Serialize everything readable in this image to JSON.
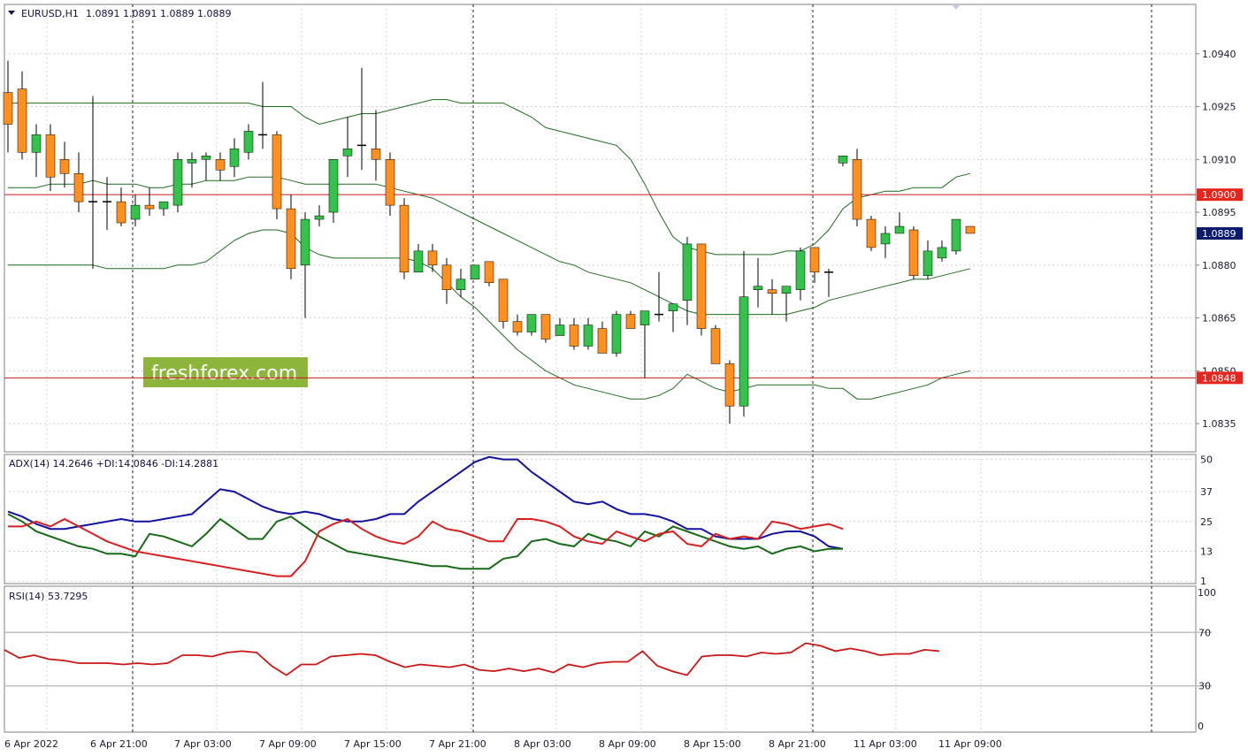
{
  "symbol_header": {
    "title": "EURUSD,H1",
    "ohlc": "1.0891 1.0891 1.0889 1.0889"
  },
  "watermark": "freshforex.com",
  "price_tags": [
    {
      "label": "1.0900",
      "value": 1.09,
      "color": "#e8251c",
      "kind": "level"
    },
    {
      "label": "1.0889",
      "value": 1.0889,
      "color": "#0a1a6e",
      "kind": "bid"
    },
    {
      "label": "1.0848",
      "value": 1.0848,
      "color": "#e8251c",
      "kind": "level"
    }
  ],
  "colors": {
    "bull": "#33c24a",
    "bear": "#ff8f1f",
    "bands": "#1d6b1d",
    "adx": "#1212a0",
    "plus_di": "#166b16",
    "minus_di": "#d81e1e",
    "rsi": "#cc1515",
    "level": "#cc1a1a",
    "grid": "#d0d0d0"
  },
  "chart_data": [
    {
      "type": "candlestick",
      "title": "EURUSD,H1",
      "ylim": [
        1.0827,
        1.0954
      ],
      "y_ticks": [
        "1.0940",
        "1.0925",
        "1.0910",
        "1.0895",
        "1.0880",
        "1.0865",
        "1.0850",
        "1.0835"
      ],
      "x_ticks": [
        "6 Apr 2022",
        "6 Apr 21:00",
        "7 Apr 03:00",
        "7 Apr 09:00",
        "7 Apr 15:00",
        "7 Apr 21:00",
        "8 Apr 03:00",
        "8 Apr 09:00",
        "8 Apr 15:00",
        "8 Apr 21:00",
        "11 Apr 03:00",
        "11 Apr 09:00"
      ],
      "candles": [
        [
          1.0929,
          1.0938,
          1.0912,
          1.092
        ],
        [
          1.093,
          1.0935,
          1.091,
          1.0912
        ],
        [
          1.0912,
          1.092,
          1.0905,
          1.0917
        ],
        [
          1.0917,
          1.092,
          1.0901,
          1.0905
        ],
        [
          1.091,
          1.0915,
          1.0902,
          1.0906
        ],
        [
          1.0906,
          1.0912,
          1.0895,
          1.0898
        ],
        [
          1.0898,
          1.0928,
          1.0879,
          1.0898
        ],
        [
          1.0898,
          1.0905,
          1.089,
          1.0898
        ],
        [
          1.0898,
          1.0902,
          1.0891,
          1.0892
        ],
        [
          1.0893,
          1.09,
          1.0891,
          1.0897
        ],
        [
          1.0897,
          1.0902,
          1.0894,
          1.0896
        ],
        [
          1.0896,
          1.0898,
          1.0894,
          1.0898
        ],
        [
          1.0897,
          1.0912,
          1.0895,
          1.091
        ],
        [
          1.0909,
          1.0912,
          1.0902,
          1.091
        ],
        [
          1.091,
          1.0912,
          1.0904,
          1.0911
        ],
        [
          1.091,
          1.0912,
          1.0904,
          1.0907
        ],
        [
          1.0908,
          1.0916,
          1.0905,
          1.0913
        ],
        [
          1.0912,
          1.092,
          1.091,
          1.0918
        ],
        [
          1.0917,
          1.0932,
          1.0913,
          1.0917
        ],
        [
          1.0917,
          1.0918,
          1.0893,
          1.0896
        ],
        [
          1.0896,
          1.09,
          1.0876,
          1.0879
        ],
        [
          1.088,
          1.0895,
          1.0865,
          1.0893
        ],
        [
          1.0893,
          1.0897,
          1.0891,
          1.0894
        ],
        [
          1.0895,
          1.0909,
          1.0892,
          1.091
        ],
        [
          1.0911,
          1.0922,
          1.0905,
          1.0913
        ],
        [
          1.0914,
          1.0936,
          1.0907,
          1.0914
        ],
        [
          1.0913,
          1.0924,
          1.0904,
          1.091
        ],
        [
          1.091,
          1.0912,
          1.0894,
          1.0897
        ],
        [
          1.0897,
          1.0899,
          1.0876,
          1.0878
        ],
        [
          1.0878,
          1.0886,
          1.0878,
          1.0884
        ],
        [
          1.0884,
          1.0886,
          1.0878,
          1.088
        ],
        [
          1.088,
          1.0882,
          1.0869,
          1.0873
        ],
        [
          1.0873,
          1.0879,
          1.0871,
          1.0876
        ],
        [
          1.0876,
          1.088,
          1.0876,
          1.088
        ],
        [
          1.0881,
          1.0881,
          1.0874,
          1.0875
        ],
        [
          1.0876,
          1.0876,
          1.0862,
          1.0864
        ],
        [
          1.0864,
          1.0866,
          1.086,
          1.0861
        ],
        [
          1.0861,
          1.0866,
          1.086,
          1.0866
        ],
        [
          1.0866,
          1.0865,
          1.0858,
          1.0859
        ],
        [
          1.086,
          1.0865,
          1.086,
          1.0863
        ],
        [
          1.0863,
          1.0865,
          1.0856,
          1.0857
        ],
        [
          1.0857,
          1.0865,
          1.0856,
          1.0863
        ],
        [
          1.0862,
          1.0864,
          1.0855,
          1.0855
        ],
        [
          1.0855,
          1.0867,
          1.0854,
          1.0866
        ],
        [
          1.0866,
          1.0867,
          1.0863,
          1.0862
        ],
        [
          1.0863,
          1.0867,
          1.0848,
          1.0867
        ],
        [
          1.0866,
          1.0878,
          1.0864,
          1.0866
        ],
        [
          1.0867,
          1.0869,
          1.0861,
          1.0869
        ],
        [
          1.087,
          1.0888,
          1.0863,
          1.0886
        ],
        [
          1.0886,
          1.0886,
          1.086,
          1.0862
        ],
        [
          1.0862,
          1.0863,
          1.0852,
          1.0852
        ],
        [
          1.0852,
          1.0853,
          1.0835,
          1.084
        ],
        [
          1.084,
          1.0884,
          1.0837,
          1.0871
        ],
        [
          1.0873,
          1.0882,
          1.0868,
          1.0874
        ],
        [
          1.0873,
          1.0876,
          1.0866,
          1.0872
        ],
        [
          1.0872,
          1.0874,
          1.0864,
          1.0874
        ],
        [
          1.0873,
          1.0885,
          1.087,
          1.0884
        ],
        [
          1.0885,
          1.0885,
          1.0875,
          1.0878
        ],
        [
          1.0878,
          1.0879,
          1.0871,
          1.0878
        ],
        [
          1.0909,
          1.0911,
          1.0908,
          1.0911
        ],
        [
          1.091,
          1.0913,
          1.0891,
          1.0893
        ],
        [
          1.0893,
          1.0894,
          1.0884,
          1.0885
        ],
        [
          1.0886,
          1.0891,
          1.0882,
          1.0889
        ],
        [
          1.0889,
          1.0895,
          1.089,
          1.0891
        ],
        [
          1.089,
          1.0891,
          1.0876,
          1.0877
        ],
        [
          1.0877,
          1.0887,
          1.0876,
          1.0884
        ],
        [
          1.0882,
          1.0887,
          1.0881,
          1.0885
        ],
        [
          1.0884,
          1.0893,
          1.0883,
          1.0893
        ],
        [
          1.0891,
          1.0891,
          1.0889,
          1.0889
        ]
      ],
      "bollinger_bands": {
        "period_note": "",
        "upper": [
          1.0926,
          1.0926,
          1.0926,
          1.0926,
          1.0926,
          1.0926,
          1.0926,
          1.0926,
          1.0926,
          1.0926,
          1.0926,
          1.0926,
          1.0926,
          1.0926,
          1.0926,
          1.0926,
          1.0926,
          1.0926,
          1.0925,
          1.0925,
          1.0925,
          1.0922,
          1.092,
          1.0921,
          1.0922,
          1.0923,
          1.0923,
          1.0924,
          1.0925,
          1.0926,
          1.0927,
          1.0927,
          1.0926,
          1.0926,
          1.0926,
          1.0926,
          1.0924,
          1.0922,
          1.0919,
          1.0918,
          1.0917,
          1.0916,
          1.0915,
          1.0914,
          1.091,
          1.0903,
          1.0895,
          1.0888,
          1.0885,
          1.0884,
          1.0883,
          1.0883,
          1.0883,
          1.0883,
          1.0883,
          1.0884,
          1.0884,
          1.0886,
          1.089,
          1.0896,
          1.0899,
          1.09,
          1.0901,
          1.0901,
          1.0902,
          1.0902,
          1.0902,
          1.0905,
          1.0906
        ],
        "middle": [
          1.0902,
          1.0902,
          1.0902,
          1.0903,
          1.0903,
          1.0903,
          1.0904,
          1.0903,
          1.0903,
          1.0903,
          1.0902,
          1.0902,
          1.0903,
          1.0903,
          1.0904,
          1.0904,
          1.0904,
          1.0905,
          1.0905,
          1.0905,
          1.0904,
          1.0903,
          1.0903,
          1.0903,
          1.0903,
          1.0903,
          1.0903,
          1.0902,
          1.0901,
          1.09,
          1.0899,
          1.0897,
          1.0895,
          1.0893,
          1.0891,
          1.0889,
          1.0887,
          1.0885,
          1.0883,
          1.0881,
          1.088,
          1.0878,
          1.0877,
          1.0876,
          1.0875,
          1.0873,
          1.0871,
          1.0869,
          1.0867,
          1.0866,
          1.0866,
          1.0866,
          1.0866,
          1.0866,
          1.0866,
          1.0866,
          1.0867,
          1.0868,
          1.087,
          1.0871,
          1.0872,
          1.0873,
          1.0874,
          1.0875,
          1.0876,
          1.0876,
          1.0877,
          1.0878,
          1.0879
        ],
        "lower": [
          1.088,
          1.088,
          1.088,
          1.088,
          1.088,
          1.088,
          1.088,
          1.0879,
          1.0879,
          1.0879,
          1.0879,
          1.0879,
          1.088,
          1.088,
          1.0881,
          1.0884,
          1.0887,
          1.0889,
          1.089,
          1.089,
          1.0889,
          1.0885,
          1.0883,
          1.0882,
          1.0882,
          1.0882,
          1.0882,
          1.0882,
          1.0882,
          1.0881,
          1.0879,
          1.0875,
          1.0871,
          1.0868,
          1.0864,
          1.086,
          1.0856,
          1.0853,
          1.085,
          1.0848,
          1.0846,
          1.0845,
          1.0844,
          1.0843,
          1.0842,
          1.0842,
          1.0843,
          1.0845,
          1.0849,
          1.0847,
          1.0845,
          1.0844,
          1.0845,
          1.0846,
          1.0846,
          1.0846,
          1.0846,
          1.0846,
          1.0845,
          1.0845,
          1.0842,
          1.0842,
          1.0843,
          1.0844,
          1.0845,
          1.0846,
          1.0848,
          1.0849,
          1.085
        ]
      },
      "horizontal_levels": [
        1.09,
        1.0848
      ]
    },
    {
      "type": "line",
      "title": "ADX(14) 14.2646 +DI:14.0846 -DI:14.2881",
      "ylim": [
        0,
        52
      ],
      "y_ticks": [
        "50",
        "37",
        "25",
        "13",
        "1"
      ],
      "series": [
        {
          "name": "ADX",
          "values": [
            29,
            27,
            24,
            22,
            22,
            23,
            24,
            25,
            26,
            25,
            25,
            26,
            27,
            28,
            33,
            38,
            37,
            34,
            31,
            29,
            28,
            29,
            28,
            26,
            25,
            25,
            26,
            28,
            28,
            33,
            37,
            41,
            45,
            49,
            51,
            50,
            50,
            45,
            41,
            37,
            33,
            32,
            33,
            30,
            28,
            28,
            27,
            25,
            22,
            22,
            19,
            18,
            18,
            18,
            20,
            21,
            21,
            19,
            15,
            14
          ]
        },
        {
          "name": "+DI",
          "values": [
            28,
            25,
            21,
            19,
            17,
            15,
            14,
            12,
            12,
            11,
            20,
            19,
            17,
            15,
            20,
            26,
            22,
            18,
            18,
            25,
            27,
            23,
            19,
            16,
            13,
            12,
            11,
            10,
            9,
            8,
            7,
            7,
            6,
            6,
            6,
            10,
            11,
            17,
            18,
            16,
            15,
            20,
            18,
            17,
            15,
            21,
            19,
            23,
            21,
            19,
            17,
            15,
            14,
            15,
            12,
            14,
            15,
            13,
            14,
            14
          ]
        },
        {
          "name": "-DI",
          "values": [
            23,
            23,
            25,
            23,
            26,
            23,
            20,
            17,
            15,
            13,
            12,
            11,
            10,
            9,
            8,
            7,
            6,
            5,
            4,
            3,
            3,
            9,
            21,
            24,
            26,
            22,
            19,
            17,
            16,
            19,
            25,
            22,
            21,
            19,
            17,
            17,
            26,
            26,
            25,
            23,
            19,
            17,
            16,
            21,
            19,
            17,
            20,
            21,
            16,
            15,
            20,
            18,
            19,
            18,
            25,
            24,
            22,
            23,
            24,
            22
          ]
        }
      ]
    },
    {
      "type": "line",
      "title": "RSI(14) 53.7295",
      "ylim": [
        0,
        100
      ],
      "y_ticks": [
        "100",
        "70",
        "30",
        "0"
      ],
      "levels": [
        70,
        30
      ],
      "series": [
        {
          "name": "RSI",
          "values": [
            57,
            51,
            53,
            50,
            49,
            47,
            47,
            47,
            46,
            47,
            46,
            47,
            53,
            53,
            52,
            55,
            56,
            55,
            45,
            38,
            46,
            46,
            52,
            53,
            54,
            53,
            48,
            44,
            46,
            45,
            44,
            46,
            42,
            41,
            43,
            41,
            43,
            40,
            46,
            44,
            47,
            48,
            48,
            56,
            45,
            41,
            38,
            52,
            53,
            53,
            52,
            55,
            54,
            55,
            62,
            60,
            56,
            58,
            56,
            53,
            54,
            54,
            57,
            56
          ]
        }
      ]
    }
  ]
}
